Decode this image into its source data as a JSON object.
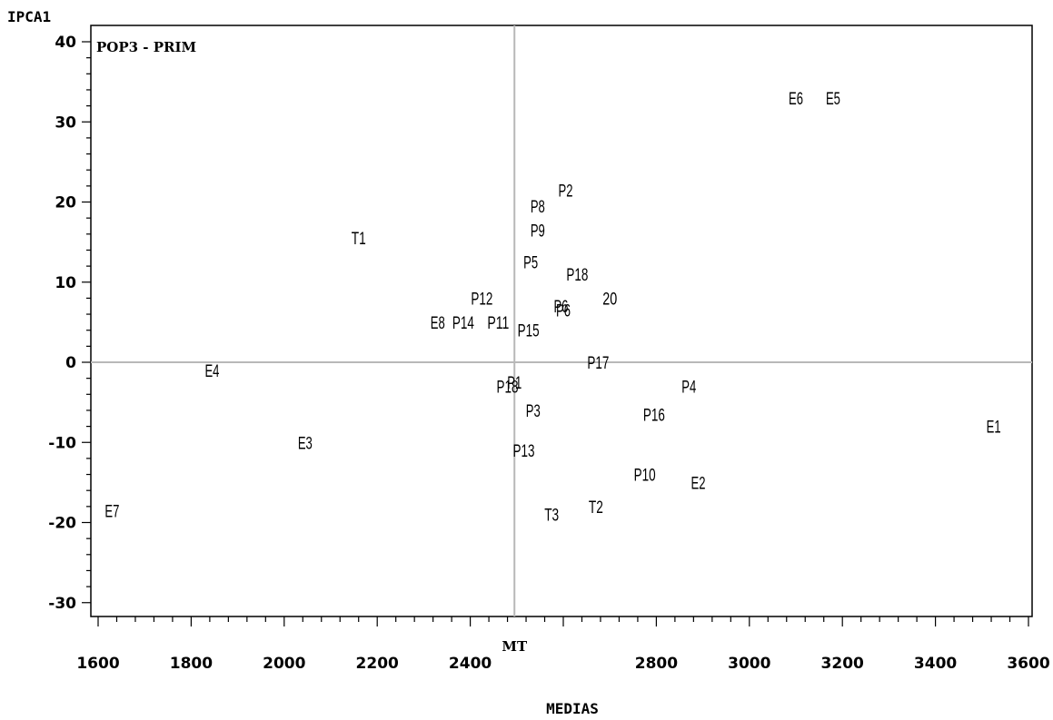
{
  "chart_data": {
    "type": "scatter",
    "title": "POP3 - PRIM",
    "xlabel": "MEDIAS",
    "ylabel": "IPCA1",
    "xlim": [
      1600,
      3600
    ],
    "ylim": [
      -31,
      42
    ],
    "x_ticks": [
      1600,
      1800,
      2000,
      2200,
      2400,
      2800,
      3000,
      3200,
      3400,
      3600
    ],
    "y_ticks": [
      40,
      30,
      20,
      10,
      0,
      -10,
      -20,
      -30
    ],
    "x_tick_labels": [
      "1600",
      "1800",
      "2000",
      "2200",
      "2400",
      "2800",
      "3000",
      "3200",
      "3400",
      "3600"
    ],
    "y_tick_labels": [
      "40",
      "30",
      "20",
      "10",
      "0",
      "-10",
      "-20",
      "-30"
    ],
    "reference_lines": {
      "x": 2495,
      "y": 0,
      "x_label": "MT"
    },
    "grid": false,
    "points": [
      {
        "label": "E6",
        "x": 3100,
        "y": 33
      },
      {
        "label": "E5",
        "x": 3180,
        "y": 33
      },
      {
        "label": "P2",
        "x": 2605,
        "y": 21.5
      },
      {
        "label": "P8",
        "x": 2545,
        "y": 19.5
      },
      {
        "label": "P9",
        "x": 2545,
        "y": 16.5
      },
      {
        "label": "T1",
        "x": 2160,
        "y": 15.5
      },
      {
        "label": "P5",
        "x": 2530,
        "y": 12.5
      },
      {
        "label": "P18",
        "x": 2630,
        "y": 11
      },
      {
        "label": "P12",
        "x": 2425,
        "y": 8
      },
      {
        "label": "20",
        "x": 2700,
        "y": 8
      },
      {
        "label": "P6",
        "x": 2595,
        "y": 7
      },
      {
        "label": "P6",
        "x": 2600,
        "y": 6.5
      },
      {
        "label": "E8",
        "x": 2330,
        "y": 5
      },
      {
        "label": "P14",
        "x": 2385,
        "y": 5
      },
      {
        "label": "P11",
        "x": 2460,
        "y": 5
      },
      {
        "label": "P15",
        "x": 2525,
        "y": 4
      },
      {
        "label": "P17",
        "x": 2675,
        "y": 0
      },
      {
        "label": "E4",
        "x": 1845,
        "y": -1
      },
      {
        "label": "P1",
        "x": 2495,
        "y": -2.5
      },
      {
        "label": "P18",
        "x": 2480,
        "y": -3
      },
      {
        "label": "P4",
        "x": 2870,
        "y": -3
      },
      {
        "label": "P3",
        "x": 2535,
        "y": -6
      },
      {
        "label": "P16",
        "x": 2795,
        "y": -6.5
      },
      {
        "label": "E1",
        "x": 3525,
        "y": -8
      },
      {
        "label": "E3",
        "x": 2045,
        "y": -10
      },
      {
        "label": "P13",
        "x": 2515,
        "y": -11
      },
      {
        "label": "P10",
        "x": 2775,
        "y": -14
      },
      {
        "label": "E2",
        "x": 2890,
        "y": -15
      },
      {
        "label": "E7",
        "x": 1630,
        "y": -18.5
      },
      {
        "label": "T2",
        "x": 2670,
        "y": -18
      },
      {
        "label": "T3",
        "x": 2575,
        "y": -19
      }
    ]
  }
}
